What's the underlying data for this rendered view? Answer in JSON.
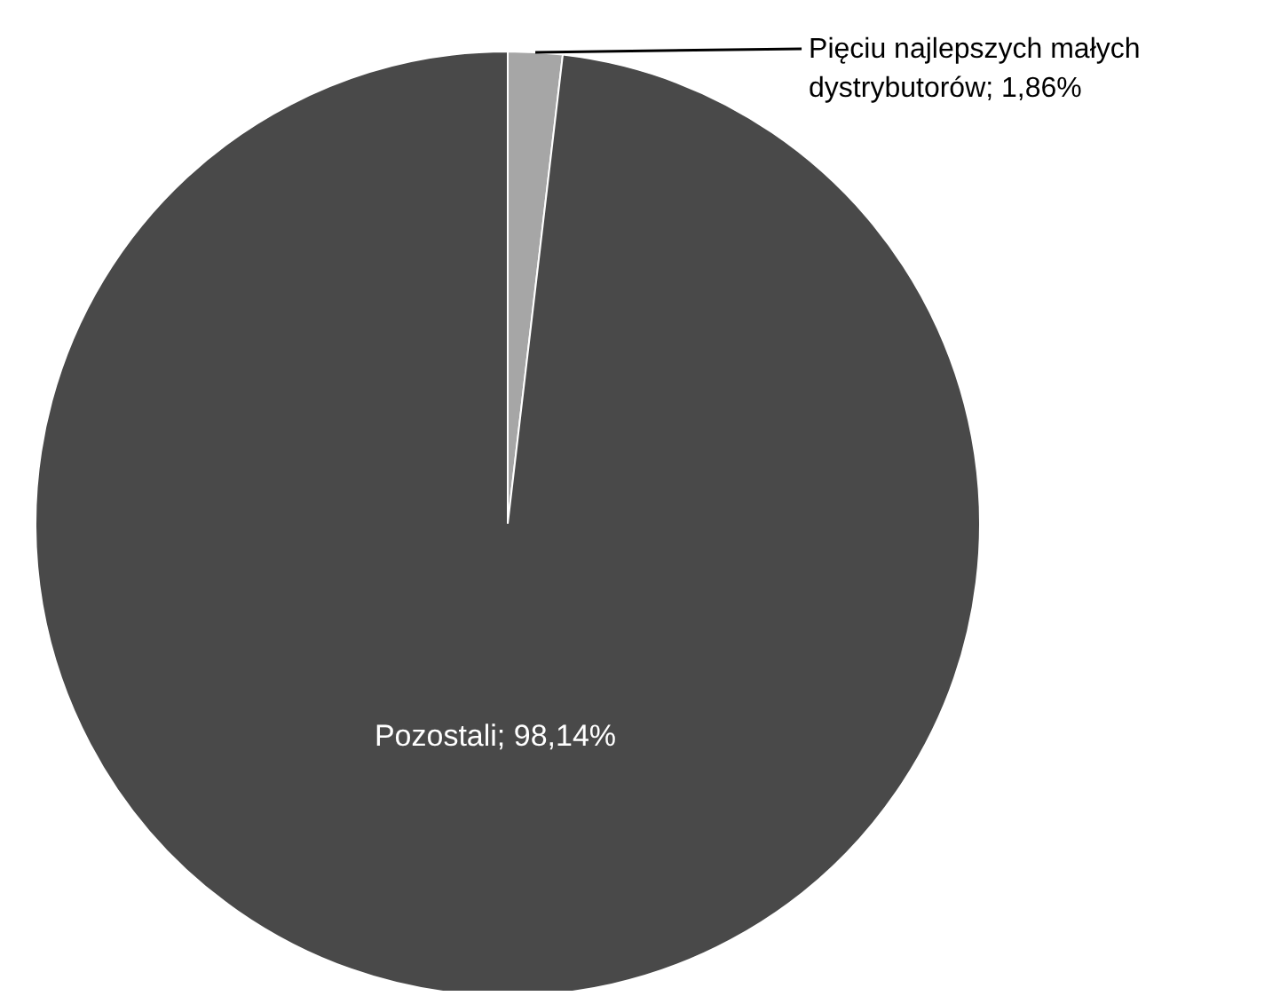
{
  "chart_data": {
    "type": "pie",
    "categories": [
      "Pięciu najlepszych małych dystrybutorów",
      "Pozostali"
    ],
    "values": [
      1.86,
      98.14
    ],
    "colors": [
      "#a6a6a6",
      "#494949"
    ],
    "value_labels": [
      "1,86%",
      "98,14%"
    ],
    "legend": false
  }
}
